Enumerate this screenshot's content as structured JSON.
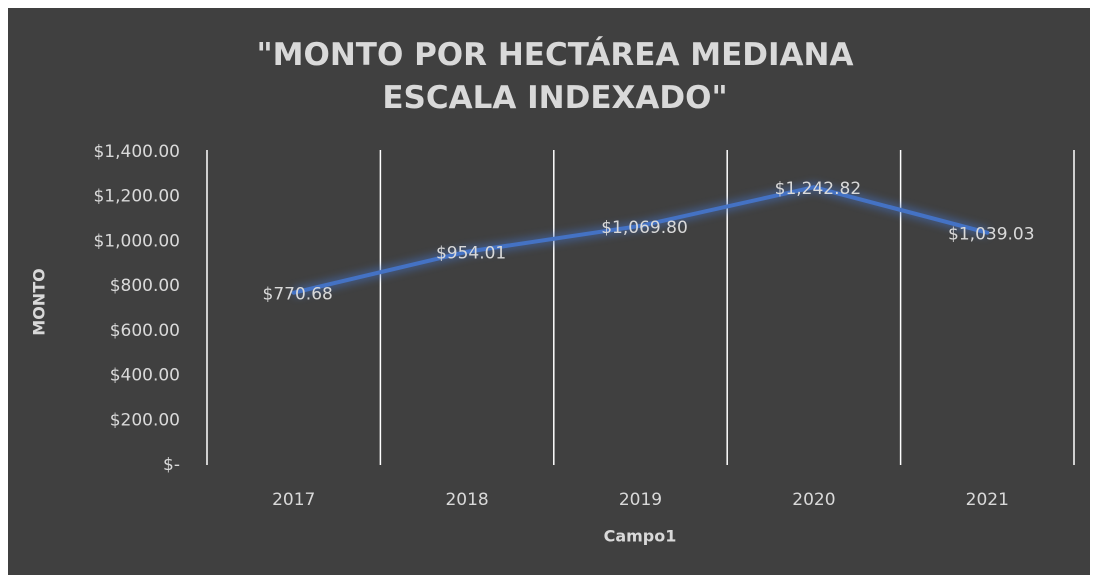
{
  "chart_data": {
    "type": "line",
    "title": "\"MONTO POR HECTÁREA MEDIANA ESCALA INDEXADO\"",
    "x_label": "Campo1",
    "y_label": "MONTO",
    "categories": [
      "2017",
      "2018",
      "2019",
      "2020",
      "2021"
    ],
    "values": [
      770.68,
      954.01,
      1069.8,
      1242.82,
      1039.03
    ],
    "value_labels": [
      "$770.68",
      "$954.01",
      "$1,069.80",
      "$1,242.82",
      "$1,039.03"
    ],
    "color": "#4472c4",
    "ylim": [
      0,
      1400
    ],
    "yticks": [
      {
        "value": 0,
        "label": "$-"
      },
      {
        "value": 200,
        "label": "$200.00"
      },
      {
        "value": 400,
        "label": "$400.00"
      },
      {
        "value": 600,
        "label": "$600.00"
      },
      {
        "value": 800,
        "label": "$800.00"
      },
      {
        "value": 1000,
        "label": "$1,000.00"
      },
      {
        "value": 1200,
        "label": "$1,200.00"
      },
      {
        "value": 1400,
        "label": "$1,400.00"
      }
    ],
    "grid": "x"
  }
}
